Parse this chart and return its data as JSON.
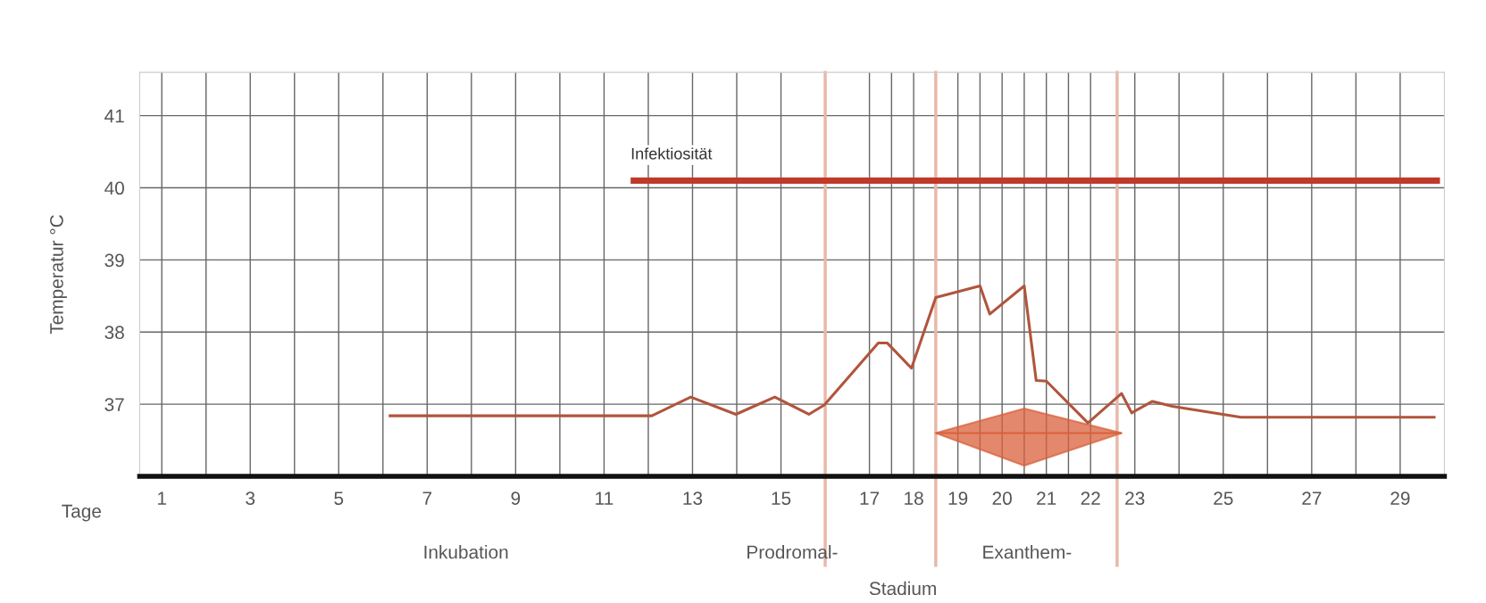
{
  "chart_data": {
    "type": "line",
    "ylabel": "Temperatur °C",
    "xlabel": "Tage",
    "xlim": [
      0.5,
      30
    ],
    "ylim": [
      36,
      41.6
    ],
    "xticks": [
      1,
      {
        "value": 2,
        "label": null
      },
      3,
      {
        "value": 4,
        "label": null
      },
      5,
      {
        "value": 6,
        "label": null
      },
      7,
      {
        "value": 8,
        "label": null
      },
      9,
      {
        "value": 10,
        "label": null
      },
      11,
      {
        "value": 12,
        "label": null
      },
      13,
      {
        "value": 14,
        "label": null
      },
      15,
      17,
      {
        "value": 17.5,
        "label": null
      },
      18,
      19,
      {
        "value": 19.5,
        "label": null
      },
      20,
      {
        "value": 20.5,
        "label": null
      },
      21,
      {
        "value": 21.5,
        "label": null
      },
      22,
      23,
      {
        "value": 24,
        "label": null
      },
      25,
      {
        "value": 26,
        "label": null
      },
      27,
      {
        "value": 28,
        "label": null
      },
      29
    ],
    "yticks": [
      37,
      38,
      39,
      40,
      41
    ],
    "grid": true,
    "marker": "none",
    "line_style": "solid",
    "series": [
      {
        "color": "#b0553c",
        "x": [
          6.13,
          12.08,
          12.96,
          13.98,
          14.86,
          15.63,
          15.98,
          17.2,
          17.4,
          17.95,
          18.5,
          19.5,
          19.72,
          20.5,
          20.77,
          21.0,
          21.94,
          22.7,
          22.93,
          23.4,
          23.85,
          25.4,
          29.8
        ],
        "values": [
          36.84,
          36.84,
          37.1,
          36.86,
          37.1,
          36.86,
          36.99,
          37.85,
          37.85,
          37.5,
          38.48,
          38.64,
          38.25,
          38.64,
          37.33,
          37.32,
          36.74,
          37.15,
          36.88,
          37.04,
          36.97,
          36.82,
          36.82
        ]
      },
      {
        "name": "Infektiosität",
        "color": "#c0392b",
        "x": [
          11.6,
          29.9
        ],
        "values": [
          40.1,
          40.1
        ]
      },
      {
        "type": "line",
        "color": "#d9603b",
        "x": [
          18.5,
          20.5,
          22.7
        ],
        "values": [
          36.6,
          36.6,
          36.6
        ],
        "lower": [
          36.6,
          36.15,
          36.6
        ],
        "upper": [
          36.6,
          36.94,
          36.6
        ]
      }
    ],
    "ref_lines": [
      {
        "axis": "x",
        "value": 16,
        "color": "#e8b8a8"
      },
      {
        "axis": "x",
        "value": 18.5,
        "color": "#e8b8a8"
      },
      {
        "axis": "x",
        "value": 22.6,
        "color": "#e8b8a8"
      }
    ],
    "annotations": [
      "Inkubation",
      "Prodromal-",
      "Exanthem-",
      "Stadium"
    ]
  }
}
